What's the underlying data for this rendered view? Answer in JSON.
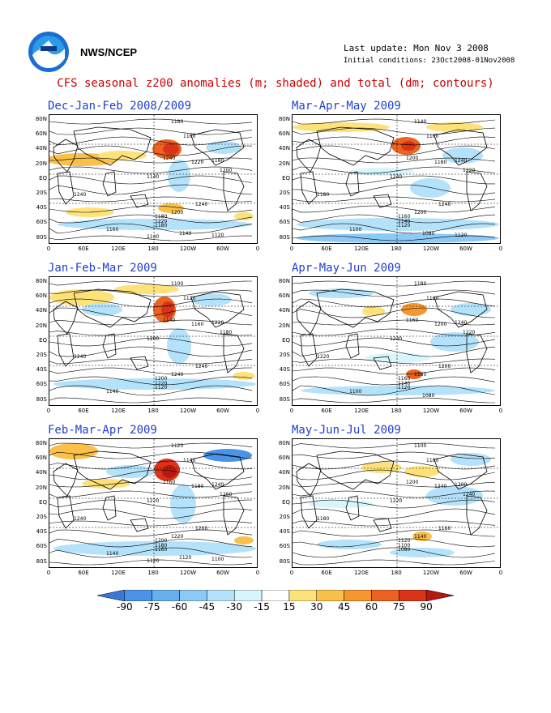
{
  "header": {
    "agency": "NWS/NCEP",
    "last_update": "Last update: Mon Nov 3 2008",
    "initial_conditions": "Initial conditions: 23Oct2008-01Nov2008",
    "main_title": "CFS seasonal z200 anomalies (m; shaded) and total (dm; contours)"
  },
  "axes": {
    "lat_labels": [
      "80N",
      "60N",
      "40N",
      "20N",
      "EQ",
      "20S",
      "40S",
      "60S",
      "80S"
    ],
    "lon_labels": [
      "0",
      "60E",
      "120E",
      "180",
      "120W",
      "60W",
      "0"
    ]
  },
  "panels": [
    {
      "title": "Dec-Jan-Feb 2008/2009",
      "contours": [
        "1180",
        "1160",
        "1240",
        "1220",
        "1200",
        "1140",
        "1180",
        "1240",
        "1240",
        "1200",
        "1180",
        "1220",
        "1180",
        "1160",
        "1140",
        "1120",
        "1140"
      ]
    },
    {
      "title": "Mar-Apr-May 2009",
      "contours": [
        "1140",
        "1160",
        "1200",
        "1180",
        "1220",
        "1240",
        "1240",
        "1180",
        "1240",
        "1200",
        "1160",
        "1140",
        "1120",
        "1100",
        "1080",
        "1120"
      ]
    },
    {
      "title": "Jan-Feb-Mar 2009",
      "contours": [
        "1100",
        "1120",
        "1140",
        "1160",
        "1180",
        "1200",
        "1220",
        "1240",
        "1240",
        "1240",
        "1200",
        "1220",
        "1120",
        "1140"
      ]
    },
    {
      "title": "Apr-May-Jun 2009",
      "contours": [
        "1180",
        "1160",
        "1160",
        "1200",
        "1220",
        "1240",
        "1240",
        "1220",
        "1200",
        "1180",
        "1160",
        "1140",
        "1120",
        "1100",
        "1080"
      ]
    },
    {
      "title": "Feb-Mar-Apr 2009",
      "contours": [
        "1120",
        "1140",
        "1160",
        "1180",
        "1200",
        "1220",
        "1240",
        "1240",
        "1200",
        "1220",
        "1200",
        "1180",
        "1160",
        "1140",
        "1120",
        "1100",
        "1120"
      ]
    },
    {
      "title": "May-Jun-Jul 2009",
      "contours": [
        "1100",
        "1180",
        "1200",
        "1240",
        "1240",
        "1220",
        "1200",
        "1180",
        "1160",
        "1140",
        "1120",
        "1100",
        "1080"
      ]
    }
  ],
  "colorbar": {
    "labels": [
      "-90",
      "-75",
      "-60",
      "-45",
      "-30",
      "-15",
      "15",
      "30",
      "45",
      "60",
      "75",
      "90"
    ],
    "colors": [
      "#3a78d8",
      "#4a94e8",
      "#66b0f0",
      "#8ccaf6",
      "#b4e2fa",
      "#d8f4fc",
      "#ffffff",
      "#fde27a",
      "#fbc04a",
      "#f6962e",
      "#ec6220",
      "#d83418",
      "#b81810"
    ]
  }
}
